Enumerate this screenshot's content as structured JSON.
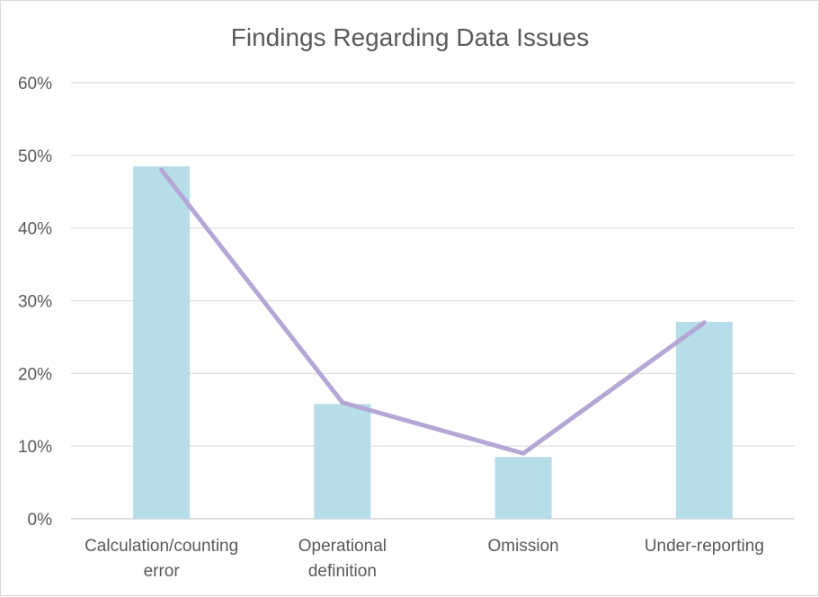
{
  "chart_data": {
    "type": "bar",
    "title": "Findings Regarding Data Issues",
    "categories": [
      [
        "Calculation/counting",
        "error"
      ],
      [
        "Operational",
        "definition"
      ],
      [
        "Omission"
      ],
      [
        "Under-reporting"
      ]
    ],
    "series": [
      {
        "type": "bar",
        "values": [
          0.485,
          0.158,
          0.085,
          0.271
        ],
        "color": "#b7dde8"
      },
      {
        "type": "line",
        "values": [
          0.48,
          0.16,
          0.09,
          0.27
        ],
        "color": "#b4a7d6"
      }
    ],
    "y_ticks": [
      "0%",
      "10%",
      "20%",
      "30%",
      "40%",
      "50%",
      "60%"
    ],
    "ylim": [
      0,
      0.6
    ],
    "grid": true,
    "gridline_color": "#d9d9d9",
    "axis_color": "#bfbfbf"
  }
}
